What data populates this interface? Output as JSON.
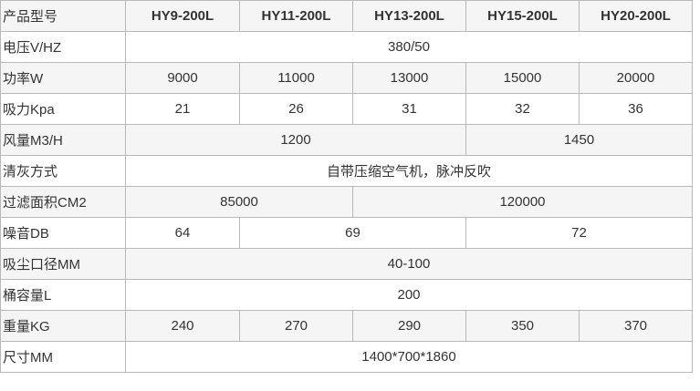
{
  "header": {
    "label": "产品型号",
    "models": [
      "HY9-200L",
      "HY11-200L",
      "HY13-200L",
      "HY15-200L",
      "HY20-200L"
    ]
  },
  "rows": {
    "voltage": {
      "label": "电压V/HZ",
      "value": "380/50"
    },
    "power": {
      "label": "功率W",
      "values": [
        "9000",
        "11000",
        "13000",
        "15000",
        "20000"
      ]
    },
    "suction": {
      "label": "吸力Kpa",
      "values": [
        "21",
        "26",
        "31",
        "32",
        "36"
      ]
    },
    "airflow": {
      "label": "风量M3/H",
      "values": [
        "1200",
        "1450"
      ]
    },
    "cleaning": {
      "label": "清灰方式",
      "value": "自带压缩空气机，脉冲反吹"
    },
    "filter_area": {
      "label": "过滤面积CM2",
      "values": [
        "85000",
        "120000"
      ]
    },
    "noise": {
      "label": "噪音DB",
      "values": [
        "64",
        "69",
        "72"
      ]
    },
    "inlet": {
      "label": "吸尘口径MM",
      "value": "40-100"
    },
    "bucket": {
      "label": "桶容量L",
      "value": "200"
    },
    "weight": {
      "label": "重量KG",
      "values": [
        "240",
        "270",
        "290",
        "350",
        "370"
      ]
    },
    "size": {
      "label": "尺寸MM",
      "value": "1400*700*1860"
    }
  }
}
